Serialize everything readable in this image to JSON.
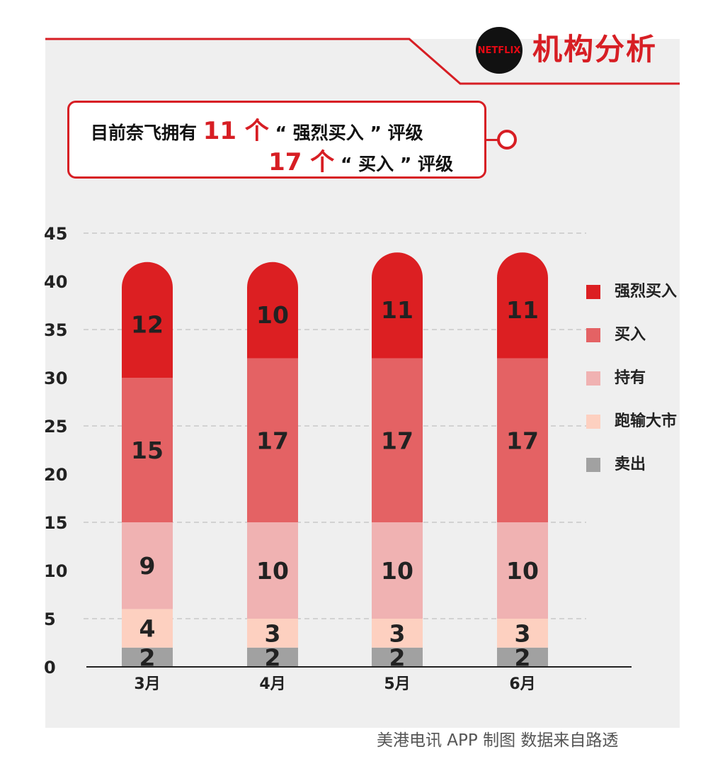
{
  "header": {
    "logo_text": "NETFLIX",
    "title": "机构分析"
  },
  "callout": {
    "line1_prefix": "目前奈飞拥有",
    "line1_count": "11 个",
    "line1_suffix": "“ 强烈买入 ” 评级",
    "line2_count": "17 个",
    "line2_suffix": "“ 买入 ” 评级"
  },
  "footer": {
    "credit": "美港电讯 APP 制图  数据来自路透"
  },
  "colors": {
    "accent": "#d71e24",
    "strong_buy": "#dc1f22",
    "buy": "#e46264",
    "hold": "#f0b2b2",
    "underperform": "#fdd0c0",
    "sell": "#a1a1a1"
  },
  "chart_data": {
    "type": "bar",
    "stacked": true,
    "categories": [
      "3月",
      "4月",
      "5月",
      "6月"
    ],
    "series": [
      {
        "name": "卖出",
        "color": "#a1a1a1",
        "values": [
          2,
          2,
          2,
          2
        ]
      },
      {
        "name": "跑输大市",
        "color": "#fdd0c0",
        "values": [
          4,
          3,
          3,
          3
        ]
      },
      {
        "name": "持有",
        "color": "#f0b2b2",
        "values": [
          9,
          10,
          10,
          10
        ]
      },
      {
        "name": "买入",
        "color": "#e46264",
        "values": [
          15,
          17,
          17,
          17
        ]
      },
      {
        "name": "强烈买入",
        "color": "#dc1f22",
        "values": [
          12,
          10,
          11,
          11
        ]
      }
    ],
    "legend_order": [
      "强烈买入",
      "买入",
      "持有",
      "跑输大市",
      "卖出"
    ],
    "yticks": [
      0,
      5,
      10,
      15,
      20,
      25,
      30,
      35,
      40,
      45
    ],
    "ylim": [
      0,
      45
    ],
    "grid": true,
    "legend_position": "right"
  }
}
